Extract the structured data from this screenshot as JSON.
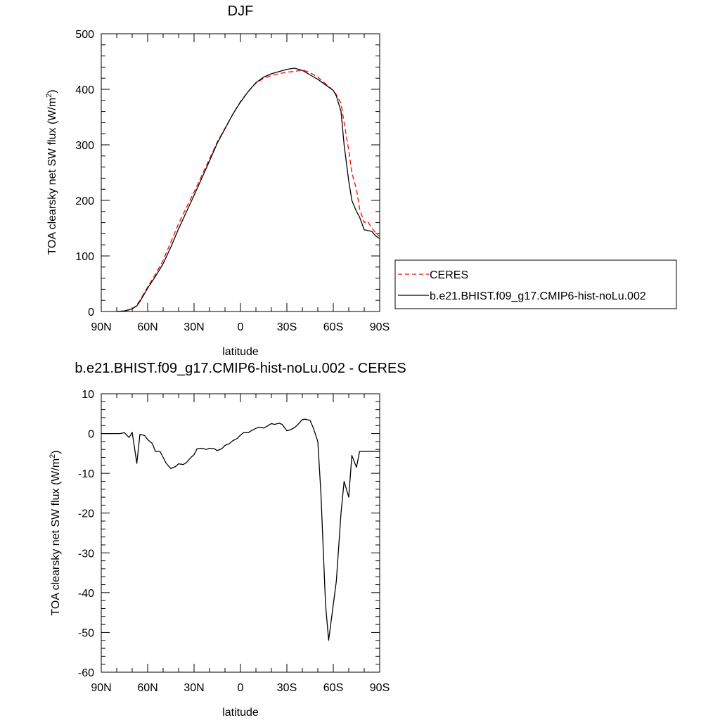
{
  "chart_data": [
    {
      "type": "line",
      "title": "DJF",
      "xlabel": "latitude",
      "ylabel": "TOA clearsky net SW flux (W/m²)",
      "ylabel_main": "TOA clearsky net SW flux (W/m",
      "ylabel_sup": "2",
      "ylabel_end": ")",
      "xlim": [
        90,
        -90
      ],
      "ylim": [
        0,
        500
      ],
      "x_ticks": [
        90,
        60,
        30,
        0,
        -30,
        -60,
        -90
      ],
      "x_tick_labels": [
        "90N",
        "60N",
        "30N",
        "0",
        "30S",
        "60S",
        "90S"
      ],
      "y_ticks": [
        0,
        100,
        200,
        300,
        400,
        500
      ],
      "y_tick_labels": [
        "0",
        "100",
        "200",
        "300",
        "400",
        "500"
      ],
      "legend": "right, outside",
      "series": [
        {
          "name": "CERES",
          "color": "#ff0000",
          "style": "dashed",
          "x": [
            80,
            75,
            70,
            67,
            65,
            60,
            55,
            50,
            45,
            40,
            35,
            30,
            25,
            20,
            15,
            10,
            5,
            0,
            -5,
            -10,
            -15,
            -20,
            -25,
            -30,
            -35,
            -40,
            -45,
            -50,
            -55,
            -60,
            -62,
            -65,
            -67,
            -70,
            -72,
            -75,
            -77,
            -80,
            -82,
            -85,
            -87,
            -90
          ],
          "y": [
            0,
            1,
            4,
            12,
            20,
            44,
            67,
            92,
            125,
            158,
            187,
            215,
            245,
            275,
            305,
            330,
            355,
            378,
            396,
            411,
            420,
            425,
            428,
            431,
            432,
            435,
            430,
            422,
            410,
            398,
            390,
            375,
            340,
            290,
            250,
            220,
            185,
            160,
            163,
            150,
            143,
            135
          ]
        },
        {
          "name": "b.e21.BHIST.f09_g17.CMIP6-hist-noLu.002",
          "color": "#000000",
          "style": "solid",
          "x": [
            80,
            75,
            70,
            67,
            65,
            60,
            55,
            50,
            45,
            40,
            35,
            30,
            25,
            20,
            15,
            10,
            5,
            0,
            -5,
            -10,
            -15,
            -20,
            -25,
            -30,
            -35,
            -40,
            -45,
            -50,
            -55,
            -60,
            -62,
            -65,
            -67,
            -70,
            -72,
            -75,
            -77,
            -80,
            -82,
            -85,
            -87,
            -90
          ],
          "y": [
            0,
            1,
            5,
            10,
            18,
            42,
            63,
            86,
            116,
            149,
            179,
            209,
            240,
            271,
            303,
            329,
            355,
            377,
            396,
            412,
            422,
            428,
            432,
            436,
            438,
            434,
            426,
            418,
            408,
            398,
            388,
            360,
            300,
            235,
            200,
            180,
            170,
            147,
            146,
            144,
            137,
            131
          ]
        }
      ]
    },
    {
      "type": "line",
      "title": "b.e21.BHIST.f09_g17.CMIP6-hist-noLu.002 - CERES",
      "xlabel": "latitude",
      "ylabel": "TOA clearsky net SW flux (W/m²)",
      "ylabel_main": "TOA clearsky net SW flux (W/m",
      "ylabel_sup": "2",
      "ylabel_end": ")",
      "xlim": [
        90,
        -90
      ],
      "ylim": [
        -60,
        10
      ],
      "x_ticks": [
        90,
        60,
        30,
        0,
        -30,
        -60,
        -90
      ],
      "x_tick_labels": [
        "90N",
        "60N",
        "30N",
        "0",
        "30S",
        "60S",
        "90S"
      ],
      "y_ticks": [
        10,
        0,
        -10,
        -20,
        -30,
        -40,
        -50,
        -60
      ],
      "y_tick_labels": [
        "10",
        "0",
        "-10",
        "-20",
        "-30",
        "-40",
        "-50",
        "-60"
      ],
      "series": [
        {
          "color": "#000000",
          "style": "solid",
          "x": [
            90,
            86,
            82,
            78,
            75,
            72,
            70,
            67,
            65,
            62,
            60,
            57,
            55,
            52,
            50,
            48,
            45,
            42,
            40,
            37,
            35,
            32,
            30,
            28,
            25,
            22,
            20,
            17,
            15,
            12,
            10,
            7,
            5,
            2,
            0,
            -2,
            -5,
            -7,
            -10,
            -12,
            -15,
            -17,
            -20,
            -22,
            -25,
            -27,
            -30,
            -32,
            -35,
            -37,
            -40,
            -42,
            -45,
            -47,
            -50,
            -52,
            -55,
            -57,
            -60,
            -62,
            -65,
            -67,
            -70,
            -72,
            -75,
            -77,
            -80,
            -82,
            -85,
            -87,
            -90
          ],
          "y": [
            0,
            0,
            0,
            0,
            0.2,
            -1,
            0.3,
            -7.5,
            -0.2,
            -0.5,
            -1.5,
            -2.5,
            -4.5,
            -4.5,
            -6,
            -7.5,
            -8.8,
            -8.3,
            -7.6,
            -7.8,
            -7.3,
            -6,
            -5.3,
            -3.8,
            -3.7,
            -4,
            -3.7,
            -3.8,
            -4.3,
            -3.8,
            -3,
            -2.5,
            -1.8,
            -1.2,
            -0.4,
            0.2,
            0.2,
            0.7,
            1.3,
            1.6,
            1.4,
            1.8,
            2.5,
            2.3,
            2.6,
            2.3,
            0.7,
            0.9,
            1.5,
            2.2,
            3.5,
            3.6,
            3.3,
            1.5,
            -2,
            -15,
            -43,
            -52,
            -43,
            -37,
            -20,
            -12,
            -16,
            -5.5,
            -8.5,
            -4.5,
            -4.5,
            -4.5,
            -4.5,
            -4.5,
            -4.5
          ]
        }
      ]
    }
  ]
}
